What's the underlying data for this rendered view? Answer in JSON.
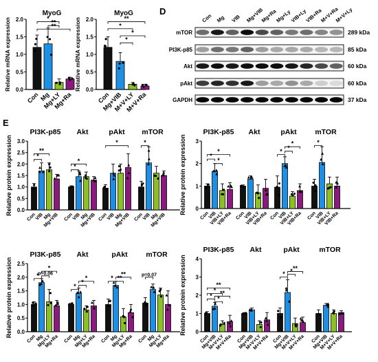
{
  "panel_labels": {
    "D": "D",
    "E": "E"
  },
  "colors": {
    "black": "#111111",
    "blue": "#1f8fe3",
    "green": "#8bc027",
    "purple": "#8a1a7e",
    "grey": "#d8d8d8",
    "blot_bg": "#f3f3f3"
  },
  "western_blot": {
    "lanes": [
      "Con",
      "Mg",
      "VIB",
      "Mg+VIB",
      "Mg+Ra",
      "Mg+Ly",
      "VIB+Ly",
      "VIB+Ra",
      "M+V+Ra",
      "M+V+Ly"
    ],
    "rows": [
      {
        "label": "mTOR",
        "size": "289 kDa"
      },
      {
        "label": "PI3K-p85",
        "size": "85 kDa"
      },
      {
        "label": "Akt",
        "size": "60 kDa"
      },
      {
        "label": "pAkt",
        "size": "60 kDa"
      },
      {
        "label": "GAPDH",
        "size": "37 kDa"
      }
    ]
  },
  "chart_data": [
    {
      "id": "myog-1",
      "type": "bar",
      "title": "MyoG",
      "ylabel": "Relative mRNA expression",
      "ylim": [
        0,
        2.0
      ],
      "yticks": [
        "0.0",
        "0.5",
        "1.0",
        "1.5",
        "2.0"
      ],
      "categories": [
        "Con",
        "Mg",
        "Mg+LY",
        "Mg+Ra"
      ],
      "values": [
        1.2,
        1.3,
        0.2,
        0.3
      ],
      "errors": [
        0.35,
        0.45,
        0.1,
        0.05
      ],
      "colors": [
        "black",
        "blue",
        "green",
        "purple"
      ],
      "sig": [
        [
          "*",
          0,
          2,
          1.93
        ],
        [
          "**",
          1,
          2,
          1.82
        ],
        [
          "**",
          0,
          3,
          1.72
        ]
      ]
    },
    {
      "id": "myog-2",
      "type": "bar",
      "title": "MyoG",
      "ylabel": "Relative mRNA expression",
      "ylim": [
        0,
        2.0
      ],
      "yticks": [
        "0.0",
        "0.5",
        "1.0",
        "1.5",
        "2.0"
      ],
      "categories": [
        "Con",
        "Mg+VIB",
        "M+V+LY",
        "M+V+Ra"
      ],
      "values": [
        1.2,
        0.8,
        0.15,
        0.1
      ],
      "errors": [
        0.3,
        0.25,
        0.05,
        0.05
      ],
      "colors": [
        "black",
        "blue",
        "green",
        "purple"
      ],
      "sig": [
        [
          "**",
          0,
          3,
          1.93
        ],
        [
          "*",
          0,
          2,
          1.73
        ],
        [
          "*",
          1,
          3,
          1.53
        ],
        [
          "*",
          1,
          2,
          1.33
        ]
      ]
    },
    {
      "id": "e1",
      "type": "bar",
      "ylabel": "Relative protein expression",
      "ylim": [
        0,
        3
      ],
      "yticks": [
        "0.0",
        "0.5",
        "1.0",
        "1.5",
        "2.0",
        "2.5",
        "3.0"
      ],
      "groups": [
        {
          "title": "PI3K-p85",
          "categories": [
            "Con",
            "VIB",
            "Mg",
            "Mg+VIB"
          ],
          "values": [
            1.0,
            1.7,
            1.75,
            1.35
          ],
          "errors": [
            0.15,
            0.35,
            0.3,
            0.2
          ]
        },
        {
          "title": "Akt",
          "categories": [
            "Con",
            "VIB",
            "Mg",
            "Mg+VIB"
          ],
          "values": [
            1.0,
            1.45,
            1.45,
            1.3
          ],
          "errors": [
            0.05,
            0.25,
            0.2,
            0.15
          ]
        },
        {
          "title": "pAkt",
          "categories": [
            "Con",
            "VIB",
            "Mg",
            "Mg+VIB"
          ],
          "values": [
            0.95,
            1.6,
            1.6,
            1.85
          ],
          "errors": [
            0.15,
            0.4,
            0.4,
            0.6
          ]
        },
        {
          "title": "mTOR",
          "categories": [
            "Con",
            "VIB",
            "Mg",
            "Mg+VIB"
          ],
          "values": [
            1.0,
            2.05,
            1.6,
            1.5
          ],
          "errors": [
            0.25,
            0.7,
            0.3,
            0.2
          ]
        }
      ],
      "sig": [
        [
          "*",
          0,
          0,
          1,
          2.2
        ],
        [
          "**",
          0,
          0,
          2,
          2.45
        ],
        [
          "*",
          1,
          0,
          1,
          1.75
        ],
        [
          "*",
          1,
          0,
          2,
          2.0
        ],
        [
          "*",
          2,
          0,
          3,
          2.8
        ],
        [
          "*",
          3,
          0,
          1,
          2.8
        ]
      ]
    },
    {
      "id": "e2",
      "type": "bar",
      "ylabel": "Relative protein expression",
      "ylim": [
        0,
        3
      ],
      "yticks": [
        "0",
        "1",
        "2",
        "3"
      ],
      "groups": [
        {
          "title": "PI3K-p85",
          "categories": [
            "Con",
            "VIB",
            "VIB+LY",
            "VIB+Ra"
          ],
          "values": [
            1.0,
            1.65,
            0.8,
            0.85
          ],
          "errors": [
            0.1,
            0.35,
            0.3,
            0.3
          ]
        },
        {
          "title": "Akt",
          "categories": [
            "Con",
            "VIB",
            "VIB+LY",
            "VIB+Ra"
          ],
          "values": [
            1.0,
            1.3,
            0.7,
            0.9
          ],
          "errors": [
            0.05,
            0.15,
            0.35,
            0.4
          ]
        },
        {
          "title": "pAkt",
          "categories": [
            "Con",
            "VIB",
            "VIB+LY",
            "VIB+Ra"
          ],
          "values": [
            0.95,
            2.0,
            0.55,
            0.8
          ],
          "errors": [
            0.5,
            0.3,
            0.2,
            0.3
          ]
        },
        {
          "title": "mTOR",
          "categories": [
            "Con",
            "VIB",
            "VIB+LY",
            "VIB+Ra"
          ],
          "values": [
            1.0,
            2.05,
            1.1,
            1.0
          ],
          "errors": [
            0.3,
            0.7,
            0.3,
            0.4
          ]
        }
      ],
      "sig": [
        [
          "*",
          0,
          0,
          1,
          2.2
        ],
        [
          "*",
          0,
          1,
          2,
          2.0
        ],
        [
          "*",
          0,
          0,
          3,
          2.4
        ],
        [
          "*",
          2,
          0,
          1,
          2.4
        ],
        [
          "*",
          2,
          1,
          2,
          2.55
        ],
        [
          "*",
          2,
          1,
          3,
          2.75
        ],
        [
          "*",
          3,
          0,
          1,
          2.8
        ]
      ]
    },
    {
      "id": "e3",
      "type": "bar",
      "ylabel": "Relative protein expression",
      "ylim": [
        0,
        2.5
      ],
      "yticks": [
        "0.0",
        "0.5",
        "1.0",
        "1.5",
        "2.0",
        "2.5"
      ],
      "groups": [
        {
          "title": "PI3K-p85",
          "categories": [
            "Con",
            "Mg",
            "Mg+LY",
            "Mg+Ra"
          ],
          "values": [
            1.0,
            1.8,
            1.1,
            0.95
          ],
          "errors": [
            0.1,
            0.15,
            0.45,
            0.2
          ]
        },
        {
          "title": "Akt",
          "categories": [
            "Con",
            "Mg",
            "Mg+LY",
            "Mg+Ra"
          ],
          "values": [
            1.0,
            1.4,
            0.8,
            0.95
          ],
          "errors": [
            0.05,
            0.2,
            0.15,
            0.2
          ]
        },
        {
          "title": "pAkt",
          "categories": [
            "Con",
            "Mg",
            "Mg+LY",
            "Mg+Ra"
          ],
          "values": [
            1.0,
            1.7,
            0.55,
            0.7
          ],
          "errors": [
            0.2,
            0.15,
            0.3,
            0.3
          ]
        },
        {
          "title": "mTOR",
          "categories": [
            "Con",
            "Mg",
            "Mg+LY",
            "Mg+Ra"
          ],
          "values": [
            1.05,
            1.55,
            1.35,
            1.0
          ],
          "errors": [
            0.2,
            0.2,
            0.25,
            0.5
          ]
        }
      ],
      "sig": [
        [
          "*",
          0,
          0,
          1,
          1.95
        ],
        [
          "p=0.06",
          0,
          1,
          2,
          2.05
        ],
        [
          "*",
          0,
          1,
          3,
          2.22
        ],
        [
          "*",
          1,
          0,
          1,
          1.55
        ],
        [
          "*",
          1,
          1,
          2,
          1.7
        ],
        [
          "*",
          1,
          1,
          3,
          1.85
        ],
        [
          "*",
          2,
          0,
          1,
          1.85
        ],
        [
          "**",
          2,
          1,
          2,
          1.85
        ],
        [
          "**",
          2,
          1,
          3,
          2.0
        ],
        [
          "p=0.07",
          3,
          0,
          1,
          2.0
        ]
      ]
    },
    {
      "id": "e4",
      "type": "bar",
      "ylabel": "Relative protein expression",
      "ylim": [
        0,
        4
      ],
      "yticks": [
        "0",
        "1",
        "2",
        "3",
        "4"
      ],
      "groups": [
        {
          "title": "PI3K-p85",
          "categories": [
            "Con",
            "Mg+VIB",
            "M+V+LY",
            "M+V+Ra"
          ],
          "values": [
            1.0,
            1.4,
            0.4,
            0.55
          ],
          "errors": [
            0.1,
            0.2,
            0.2,
            0.35
          ]
        },
        {
          "title": "Akt",
          "categories": [
            "Con",
            "Mg+VIB",
            "M+V+LY",
            "M+V+Ra"
          ],
          "values": [
            1.0,
            1.2,
            0.4,
            0.65
          ],
          "errors": [
            0.05,
            0.1,
            0.2,
            0.4
          ]
        },
        {
          "title": "pAkt",
          "categories": [
            "Con",
            "Mg+VIB",
            "M+V+LY",
            "M+V+Ra"
          ],
          "values": [
            1.0,
            2.15,
            0.45,
            0.5
          ],
          "errors": [
            0.3,
            0.7,
            0.3,
            0.3
          ]
        },
        {
          "title": "mTOR",
          "categories": [
            "Con",
            "Mg+VIB",
            "M+V+LY",
            "M+V+Ra"
          ],
          "values": [
            1.0,
            1.45,
            1.0,
            1.05
          ],
          "errors": [
            0.2,
            0.1,
            0.2,
            0.1
          ]
        }
      ],
      "sig": [
        [
          "*",
          0,
          0,
          1,
          1.8
        ],
        [
          "*",
          0,
          0,
          2,
          2.1
        ],
        [
          "**",
          0,
          0,
          3,
          2.4
        ],
        [
          "*",
          0,
          1,
          2,
          1.65
        ],
        [
          "**",
          0,
          1,
          3,
          1.95
        ],
        [
          "*",
          2,
          0,
          1,
          3.0
        ],
        [
          "*",
          2,
          1,
          2,
          3.15
        ],
        [
          "**",
          2,
          1,
          3,
          3.3
        ]
      ]
    }
  ]
}
